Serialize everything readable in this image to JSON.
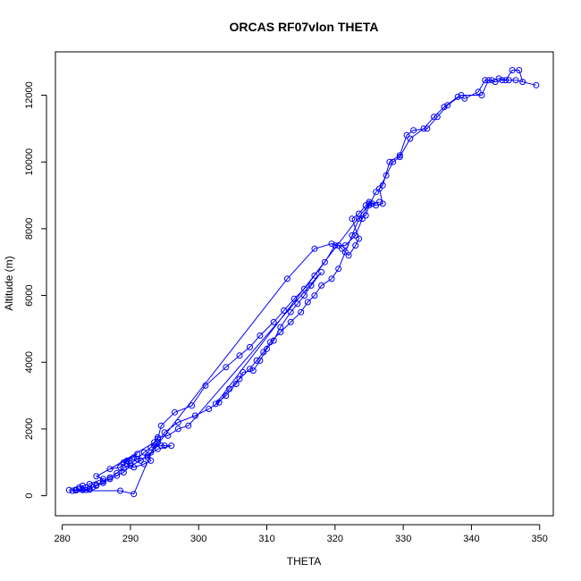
{
  "chart_data": {
    "type": "scatter",
    "title": "ORCAS RF07vlon THETA",
    "xlabel": "THETA",
    "ylabel": "Altitude (m)",
    "xlim": [
      279,
      352
    ],
    "ylim": [
      -600,
      13300
    ],
    "x_ticks": [
      280,
      290,
      300,
      310,
      320,
      330,
      340,
      350
    ],
    "y_ticks": [
      0,
      2000,
      4000,
      6000,
      8000,
      10000,
      12000
    ],
    "grid": false,
    "legend": "none",
    "series": [
      {
        "marker": "open-circle",
        "line": true,
        "points": [
          [
            281.0,
            170
          ],
          [
            282.0,
            180
          ],
          [
            282.5,
            200
          ],
          [
            283.0,
            190
          ],
          [
            283.5,
            170
          ],
          [
            284.0,
            180
          ],
          [
            284.5,
            260
          ],
          [
            285.0,
            320
          ],
          [
            286.0,
            430
          ],
          [
            287.0,
            550
          ],
          [
            288.0,
            680
          ],
          [
            289.0,
            820
          ],
          [
            290.0,
            960
          ],
          [
            291.0,
            1100
          ],
          [
            292.0,
            1300
          ],
          [
            293.0,
            1450
          ],
          [
            294.0,
            1700
          ],
          [
            294.5,
            2100
          ],
          [
            296.5,
            2500
          ],
          [
            299.0,
            2700
          ],
          [
            301.0,
            3300
          ],
          [
            304.0,
            3850
          ],
          [
            306.0,
            4200
          ],
          [
            307.5,
            4450
          ],
          [
            309.0,
            4800
          ],
          [
            311.0,
            5200
          ],
          [
            312.5,
            5550
          ],
          [
            314.0,
            5900
          ],
          [
            315.5,
            6200
          ],
          [
            317.0,
            6600
          ],
          [
            318.5,
            7000
          ],
          [
            320.0,
            7500
          ],
          [
            321.5,
            7500
          ],
          [
            323.0,
            7800
          ],
          [
            324.0,
            8300
          ],
          [
            325.0,
            8800
          ],
          [
            326.0,
            8700
          ],
          [
            327.0,
            8750
          ],
          [
            326.5,
            9200
          ],
          [
            327.5,
            9600
          ],
          [
            328.5,
            10000
          ],
          [
            329.5,
            10150
          ],
          [
            331.0,
            10700
          ],
          [
            333.0,
            11000
          ],
          [
            334.5,
            11350
          ],
          [
            336.0,
            11650
          ],
          [
            338.0,
            11950
          ],
          [
            339.0,
            11900
          ],
          [
            341.0,
            12100
          ],
          [
            342.0,
            12450
          ],
          [
            343.0,
            12450
          ],
          [
            344.0,
            12500
          ],
          [
            345.0,
            12450
          ],
          [
            346.0,
            12750
          ],
          [
            347.0,
            12750
          ],
          [
            347.5,
            12400
          ],
          [
            349.5,
            12300
          ],
          [
            346.5,
            12450
          ],
          [
            345.5,
            12450
          ],
          [
            344.5,
            12450
          ],
          [
            343.5,
            12400
          ],
          [
            342.5,
            12450
          ],
          [
            341.5,
            12000
          ],
          [
            338.5,
            12000
          ],
          [
            336.5,
            11700
          ],
          [
            335.0,
            11350
          ],
          [
            333.5,
            11000
          ],
          [
            331.5,
            10950
          ],
          [
            330.5,
            10800
          ],
          [
            329.5,
            10200
          ],
          [
            328.0,
            10000
          ],
          [
            327.0,
            9300
          ],
          [
            326.0,
            9100
          ],
          [
            325.0,
            8700
          ],
          [
            324.5,
            8400
          ],
          [
            323.5,
            8300
          ],
          [
            322.5,
            7800
          ],
          [
            321.5,
            7300
          ],
          [
            320.5,
            6800
          ],
          [
            319.5,
            6500
          ],
          [
            318.0,
            6300
          ],
          [
            317.0,
            6000
          ],
          [
            316.0,
            5800
          ],
          [
            315.0,
            5500
          ],
          [
            313.5,
            5200
          ],
          [
            312.0,
            4900
          ],
          [
            310.5,
            4600
          ],
          [
            309.5,
            4300
          ],
          [
            308.5,
            4050
          ],
          [
            307.5,
            3800
          ],
          [
            306.0,
            3500
          ],
          [
            304.5,
            3200
          ],
          [
            303.0,
            2800
          ],
          [
            301.5,
            2600
          ],
          [
            299.5,
            2400
          ],
          [
            297.0,
            2200
          ],
          [
            295.0,
            1900
          ],
          [
            294.0,
            1600
          ],
          [
            293.0,
            1300
          ],
          [
            291.5,
            1050
          ],
          [
            290.0,
            900
          ],
          [
            289.0,
            700
          ],
          [
            288.0,
            600
          ],
          [
            287.0,
            500
          ],
          [
            286.0,
            380
          ],
          [
            285.0,
            300
          ],
          [
            284.0,
            220
          ],
          [
            283.0,
            170
          ],
          [
            282.0,
            160
          ],
          [
            281.5,
            150
          ],
          [
            288.5,
            150
          ],
          [
            290.5,
            50
          ],
          [
            293.5,
            1500
          ],
          [
            294.5,
            1500
          ],
          [
            295.0,
            1500
          ],
          [
            296.0,
            1500
          ],
          [
            294.0,
            1400
          ],
          [
            292.5,
            1200
          ],
          [
            293.0,
            1050
          ],
          [
            292.0,
            950
          ],
          [
            290.5,
            850
          ],
          [
            289.5,
            950
          ],
          [
            289.0,
            1000
          ],
          [
            291.0,
            1100
          ],
          [
            292.5,
            1150
          ],
          [
            313.0,
            6500
          ],
          [
            317.0,
            7400
          ],
          [
            319.5,
            7550
          ],
          [
            320.5,
            7500
          ],
          [
            321.0,
            7400
          ],
          [
            322.0,
            7200
          ],
          [
            323.0,
            7500
          ],
          [
            323.5,
            7700
          ],
          [
            322.5,
            8300
          ],
          [
            323.5,
            8450
          ],
          [
            324.5,
            8700
          ],
          [
            325.5,
            8750
          ],
          [
            326.5,
            8800
          ],
          [
            325.0,
            8750
          ],
          [
            302.5,
            2750
          ],
          [
            304.0,
            3000
          ],
          [
            305.5,
            3350
          ],
          [
            306.5,
            3700
          ],
          [
            308.0,
            3750
          ],
          [
            309.0,
            4050
          ],
          [
            310.0,
            4400
          ],
          [
            311.0,
            4650
          ],
          [
            312.0,
            5050
          ],
          [
            313.5,
            5500
          ],
          [
            314.5,
            5750
          ],
          [
            315.5,
            6000
          ],
          [
            316.5,
            6300
          ],
          [
            318.0,
            6700
          ],
          [
            298.5,
            2100
          ],
          [
            297.0,
            2000
          ],
          [
            295.5,
            1800
          ],
          [
            294.0,
            1750
          ],
          [
            293.5,
            1600
          ],
          [
            287.0,
            800
          ],
          [
            288.5,
            850
          ],
          [
            289.5,
            1050
          ],
          [
            290.5,
            1150
          ],
          [
            291.0,
            1250
          ],
          [
            285.0,
            580
          ],
          [
            286.0,
            500
          ],
          [
            284.0,
            350
          ],
          [
            283.0,
            300
          ],
          [
            282.5,
            250
          ]
        ]
      }
    ]
  }
}
